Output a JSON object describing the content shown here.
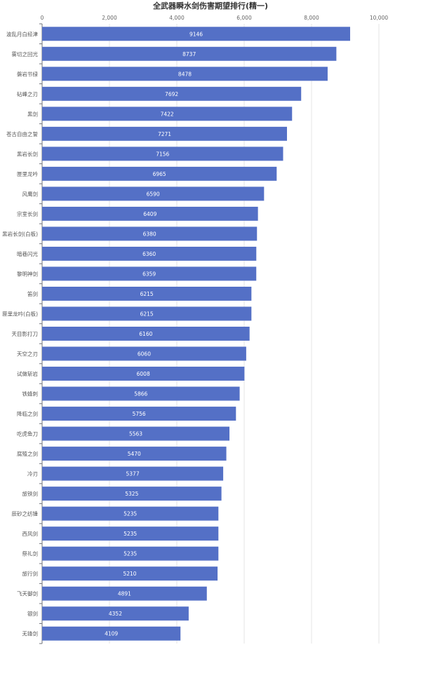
{
  "chart_data": {
    "type": "bar",
    "orientation": "horizontal",
    "title": "全武器瞬水剑伤害期望排行(精一)",
    "xlabel": "",
    "ylabel": "",
    "xlim": [
      0,
      10000
    ],
    "x_ticks": [
      "0",
      "2,000",
      "4,000",
      "6,000",
      "8,000",
      "10,000"
    ],
    "x_tick_values": [
      0,
      2000,
      4000,
      6000,
      8000,
      10000
    ],
    "grid": true,
    "bar_color": "#5470c6",
    "categories": [
      "波乱月白经津",
      "雾切之回光",
      "磐岩节绿",
      "砧峰之刃",
      "黑剑",
      "苍古自由之誓",
      "黑岩长剑",
      "匣里龙吟",
      "风鹰剑",
      "宗室长剑",
      "黑岩长剑(白板)",
      "暗巷闪光",
      "黎明神剑",
      "笛剑",
      "匣里龙吟(白板)",
      "天目影打刀",
      "天空之刃",
      "试做斩岩",
      "铁蜂刺",
      "降临之剑",
      "吃虎鱼刀",
      "腐殖之剑",
      "冷刃",
      "旅铁剑",
      "辰砂之纺锤",
      "西风剑",
      "祭礼剑",
      "旅行剑",
      "飞天御剑",
      "银剑",
      "无锋剑"
    ],
    "values": [
      9146,
      8737,
      8478,
      7692,
      7422,
      7271,
      7156,
      6965,
      6590,
      6409,
      6380,
      6360,
      6359,
      6215,
      6215,
      6160,
      6060,
      6008,
      5866,
      5756,
      5563,
      5470,
      5377,
      5325,
      5235,
      5235,
      5235,
      5210,
      4891,
      4352,
      4109
    ],
    "value_labels": [
      "9146",
      "8737",
      "8478",
      "7692",
      "7422",
      "7271",
      "7156",
      "6965",
      "6590",
      "6409",
      "6380",
      "6360",
      "6359",
      "6215",
      "6215",
      "6160",
      "6060",
      "6008",
      "5866",
      "5756",
      "5563",
      "5470",
      "5377",
      "5325",
      "5235",
      "5235",
      "5235",
      "5210",
      "4891",
      "4352",
      "4109"
    ]
  }
}
